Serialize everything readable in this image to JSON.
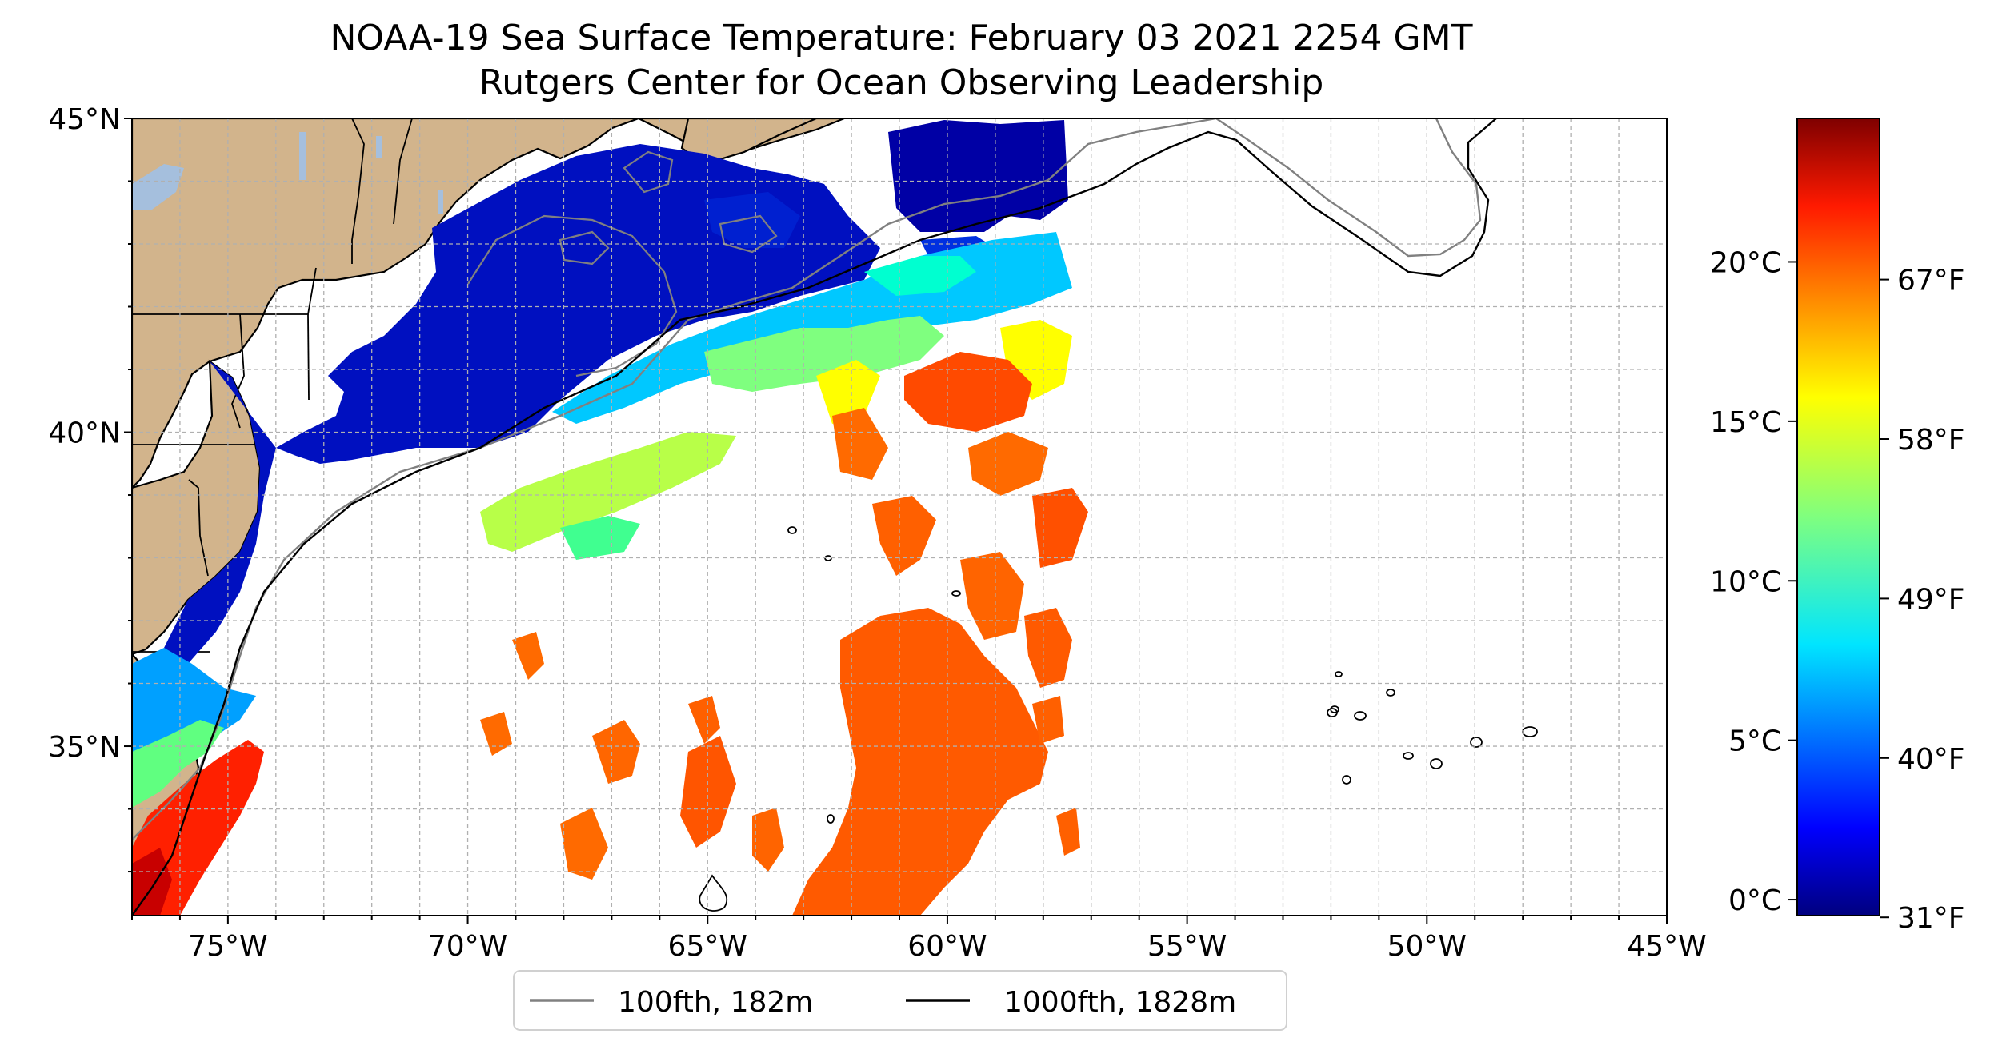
{
  "title": "NOAA-19 Sea Surface Temperature: February 03 2021 2254 GMT",
  "subtitle": "Rutgers Center for Ocean Observing Leadership",
  "map": {
    "lon_range": [
      -77,
      -45
    ],
    "lat_range": [
      32.3,
      45
    ],
    "x_ticks": [
      {
        "lon": -75,
        "label": "75°W"
      },
      {
        "lon": -70,
        "label": "70°W"
      },
      {
        "lon": -65,
        "label": "65°W"
      },
      {
        "lon": -60,
        "label": "60°W"
      },
      {
        "lon": -55,
        "label": "55°W"
      },
      {
        "lon": -50,
        "label": "50°W"
      },
      {
        "lon": -45,
        "label": "45°W"
      }
    ],
    "y_ticks": [
      {
        "lat": 35,
        "label": "35°N"
      },
      {
        "lat": 40,
        "label": "40°N"
      },
      {
        "lat": 45,
        "label": "45°N"
      }
    ],
    "grid": true,
    "land_color": "#d2b48c",
    "legend": {
      "position": "bottom-center",
      "entries": [
        {
          "label": "100fth, 182m",
          "color": "#808080"
        },
        {
          "label": "1000fth, 1828m",
          "color": "#000000"
        }
      ]
    }
  },
  "colorbar": {
    "colormap": "jet",
    "range_c": [
      -0.5,
      24.5
    ],
    "celsius_ticks": [
      {
        "value": 0,
        "label": "0°C"
      },
      {
        "value": 5,
        "label": "5°C"
      },
      {
        "value": 10,
        "label": "10°C"
      },
      {
        "value": 15,
        "label": "15°C"
      },
      {
        "value": 20,
        "label": "20°C"
      }
    ],
    "fahrenheit_ticks": [
      {
        "value": 31,
        "label": "31°F"
      },
      {
        "value": 40,
        "label": "40°F"
      },
      {
        "value": 49,
        "label": "49°F"
      },
      {
        "value": 58,
        "label": "58°F"
      },
      {
        "value": 67,
        "label": "67°F"
      }
    ]
  }
}
